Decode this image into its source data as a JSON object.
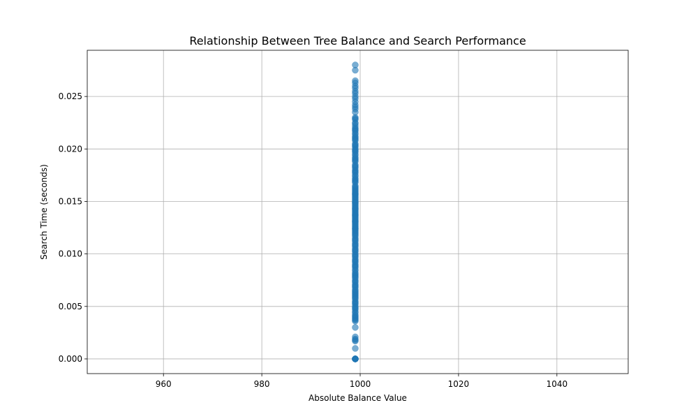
{
  "chart_data": {
    "type": "scatter",
    "title": "Relationship Between Tree Balance and Search Performance",
    "xlabel": "Absolute Balance Value",
    "ylabel": "Search Time (seconds)",
    "xlim": [
      944.5,
      1054.5
    ],
    "ylim": [
      -0.0014,
      0.0294
    ],
    "xticks": [
      960,
      980,
      1000,
      1020,
      1040
    ],
    "xtick_labels": [
      "960",
      "980",
      "1000",
      "1020",
      "1040"
    ],
    "yticks": [
      0.0,
      0.005,
      0.01,
      0.015,
      0.02,
      0.025
    ],
    "ytick_labels": [
      "0.000",
      "0.005",
      "0.010",
      "0.015",
      "0.020",
      "0.025"
    ],
    "grid": true,
    "marker_color": "#1f77b4",
    "marker_alpha": 0.6,
    "series": [
      {
        "x": [
          999,
          999,
          999,
          999,
          999,
          999,
          999,
          999,
          999,
          999,
          999,
          999,
          999,
          999,
          999,
          999,
          999,
          999,
          999,
          999,
          999,
          999,
          999,
          999,
          999,
          999,
          999,
          999,
          999,
          999,
          999,
          999,
          999,
          999,
          999,
          999,
          999,
          999,
          999,
          999,
          999,
          999,
          999,
          999,
          999,
          999,
          999,
          999,
          999,
          999,
          999,
          999,
          999,
          999,
          999,
          999,
          999,
          999,
          999,
          999,
          999,
          999,
          999,
          999,
          999,
          999,
          999,
          999,
          999,
          999,
          999,
          999,
          999,
          999,
          999,
          999,
          999,
          999,
          999,
          999,
          999,
          999,
          999,
          999,
          999,
          999,
          999,
          999,
          999,
          999,
          999,
          999,
          999,
          999,
          999,
          999,
          999,
          999,
          999,
          999,
          999,
          999,
          999,
          999,
          999,
          999,
          999,
          999,
          999,
          999,
          999,
          999,
          999,
          999,
          999,
          999,
          999,
          999,
          999,
          999,
          999,
          999,
          999,
          999,
          999,
          999,
          999,
          999,
          999,
          999,
          999,
          999,
          999,
          999,
          999,
          999,
          999,
          999,
          999,
          999,
          999,
          999,
          999,
          999,
          999,
          999,
          999,
          999,
          999,
          999,
          999,
          999,
          999,
          999,
          999,
          999,
          999,
          999,
          999,
          999,
          999,
          999,
          999,
          999,
          999,
          999,
          999,
          999,
          999,
          999,
          999,
          999,
          999,
          999,
          999,
          999,
          999,
          999,
          999,
          999,
          999,
          999,
          999,
          999,
          999,
          999,
          999,
          999,
          999,
          999,
          999,
          999,
          999,
          999,
          999,
          999,
          999,
          999,
          999,
          999,
          999,
          999
        ],
        "y": [
          0.0,
          0.0,
          0.0,
          0.0,
          0.0,
          0.0,
          0.0,
          0.0,
          0.001,
          0.0017,
          0.0019,
          0.0021,
          0.003,
          0.0036,
          0.0038,
          0.004,
          0.0042,
          0.0045,
          0.0048,
          0.005,
          0.0053,
          0.0055,
          0.0058,
          0.006,
          0.0062,
          0.0065,
          0.0068,
          0.007,
          0.0073,
          0.0075,
          0.0078,
          0.008,
          0.0082,
          0.0085,
          0.0088,
          0.009,
          0.0093,
          0.0095,
          0.0097,
          0.01,
          0.0102,
          0.0105,
          0.0107,
          0.011,
          0.0112,
          0.0115,
          0.0117,
          0.012,
          0.0122,
          0.0124,
          0.0126,
          0.0128,
          0.013,
          0.0132,
          0.0134,
          0.0136,
          0.0138,
          0.014,
          0.0142,
          0.0144,
          0.0146,
          0.0148,
          0.015,
          0.0152,
          0.0154,
          0.0156,
          0.0158,
          0.016,
          0.0162,
          0.0165,
          0.0168,
          0.017,
          0.0172,
          0.0175,
          0.0178,
          0.018,
          0.0182,
          0.0185,
          0.0188,
          0.019,
          0.0192,
          0.0195,
          0.0198,
          0.02,
          0.0202,
          0.0205,
          0.0208,
          0.021,
          0.0212,
          0.0215,
          0.0218,
          0.022,
          0.0222,
          0.0225,
          0.0228,
          0.023,
          0.0235,
          0.0238,
          0.024,
          0.0242,
          0.0245,
          0.0248,
          0.025,
          0.0253,
          0.0255,
          0.0258,
          0.026,
          0.0263,
          0.0265,
          0.0275,
          0.028,
          0.0,
          0.0,
          0.0,
          0.0,
          0.0,
          0.0018,
          0.0037,
          0.0039,
          0.0041,
          0.0044,
          0.0047,
          0.0052,
          0.0057,
          0.0061,
          0.0064,
          0.0069,
          0.0074,
          0.0079,
          0.0084,
          0.0089,
          0.0094,
          0.0099,
          0.0104,
          0.0109,
          0.0114,
          0.0119,
          0.0121,
          0.0123,
          0.0125,
          0.0127,
          0.0129,
          0.0131,
          0.0133,
          0.0135,
          0.0137,
          0.0139,
          0.0141,
          0.0143,
          0.0145,
          0.0147,
          0.0149,
          0.0151,
          0.0153,
          0.0155,
          0.0157,
          0.0159,
          0.0161,
          0.0164,
          0.0169,
          0.0174,
          0.0179,
          0.0184,
          0.0189,
          0.0194,
          0.0199,
          0.0204,
          0.0209,
          0.0214,
          0.0219,
          0.0224,
          0.0229,
          0.0118,
          0.0124,
          0.0131,
          0.0137,
          0.0143,
          0.0149,
          0.0113,
          0.0108,
          0.0103,
          0.0098,
          0.0092,
          0.0087,
          0.0081,
          0.0077,
          0.0071,
          0.0066,
          0.0063,
          0.0059,
          0.0054,
          0.0049,
          0.0157,
          0.0163,
          0.0171,
          0.0177,
          0.0183,
          0.0191,
          0.0197,
          0.0203,
          0.0211,
          0.0217
        ]
      }
    ]
  }
}
